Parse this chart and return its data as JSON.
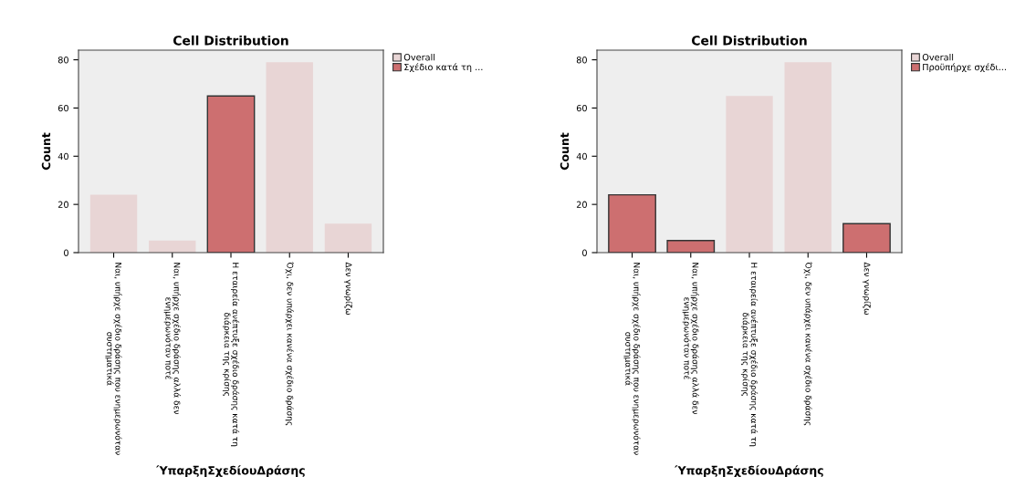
{
  "chart_data": [
    {
      "type": "bar",
      "title": "Cell Distribution",
      "xlabel": "ΎπαρξηΣχεδίουΔράσης",
      "ylabel": "Count",
      "categories": [
        "Ναι, υπήρχε σχέδιο δράσης που ενημερωνόταν\nσυστηματικά",
        "Ναι, υπήρχε σχέδιο δράσης αλλά δεν\nενημερωνόταν ποτέ",
        "Η εταιρεία ανέπτυξε σχέδιο δράσης κατά τη\nδιάρκεια της κρίσης",
        "Όχι, δεν υπάρχει κανένα σχέδιο δράσης",
        "Δεν γνωρίζω"
      ],
      "series": [
        {
          "name": "Overall",
          "color": "#e8d5d5",
          "values": [
            24,
            5,
            null,
            79,
            12
          ]
        },
        {
          "name": "Σχέδιο κατά τη ...",
          "color": "#cd6f70",
          "values": [
            null,
            null,
            65,
            null,
            null
          ]
        }
      ],
      "ylim": [
        0,
        84
      ],
      "yticks": [
        0,
        20,
        40,
        60,
        80
      ],
      "grid": false,
      "legend": "top right"
    },
    {
      "type": "bar",
      "title": "Cell Distribution",
      "xlabel": "ΎπαρξηΣχεδίουΔράσης",
      "ylabel": "Count",
      "categories": [
        "Ναι, υπήρχε σχέδιο δράσης που ενημερωνόταν\nσυστηματικά",
        "Ναι, υπήρχε σχέδιο δράσης αλλά δεν\nενημερωνόταν ποτέ",
        "Η εταιρεία ανέπτυξε σχέδιο δράσης κατά τη\nδιάρκεια της κρίσης",
        "Όχι, δεν υπάρχει κανένα σχέδιο δράσης",
        "Δεν γνωρίζω"
      ],
      "series": [
        {
          "name": "Overall",
          "color": "#e8d5d5",
          "values": [
            null,
            null,
            65,
            79,
            null
          ]
        },
        {
          "name": "Προϋπήρχε σχέδι...",
          "color": "#cd6f70",
          "values": [
            24,
            5,
            null,
            null,
            12
          ]
        }
      ],
      "ylim": [
        0,
        84
      ],
      "yticks": [
        0,
        20,
        40,
        60,
        80
      ],
      "grid": false,
      "legend": "top right"
    }
  ]
}
